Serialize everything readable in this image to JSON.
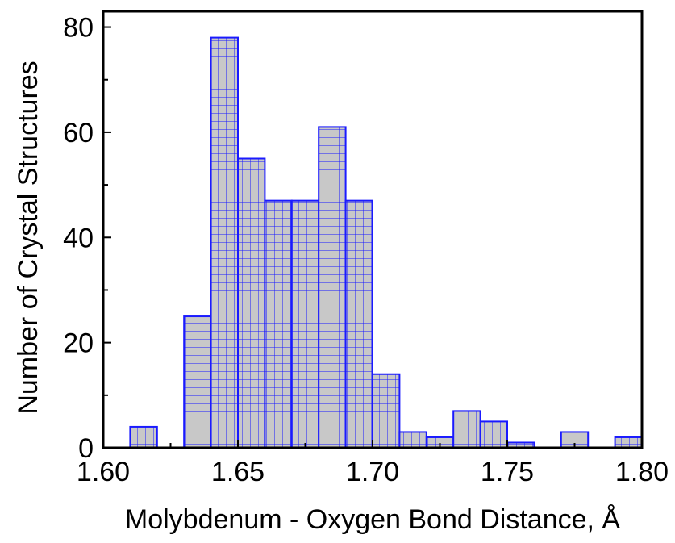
{
  "chart_data": {
    "type": "bar",
    "title": "",
    "xlabel": "Molybdenum - Oxygen Bond Distance, Å",
    "ylabel": "Number of Crystal Structures",
    "xlim": [
      1.6,
      1.8
    ],
    "ylim": [
      0,
      83
    ],
    "x_ticks": [
      "1.60",
      "1.65",
      "1.70",
      "1.75",
      "1.80"
    ],
    "y_ticks": [
      "0",
      "20",
      "40",
      "60",
      "80"
    ],
    "bin_width": 0.01,
    "bins": [
      {
        "x_start": 1.61,
        "value": 4
      },
      {
        "x_start": 1.63,
        "value": 25
      },
      {
        "x_start": 1.64,
        "value": 78
      },
      {
        "x_start": 1.65,
        "value": 55
      },
      {
        "x_start": 1.66,
        "value": 47
      },
      {
        "x_start": 1.67,
        "value": 47
      },
      {
        "x_start": 1.68,
        "value": 61
      },
      {
        "x_start": 1.69,
        "value": 47
      },
      {
        "x_start": 1.7,
        "value": 14
      },
      {
        "x_start": 1.71,
        "value": 3
      },
      {
        "x_start": 1.72,
        "value": 2
      },
      {
        "x_start": 1.73,
        "value": 7
      },
      {
        "x_start": 1.74,
        "value": 5
      },
      {
        "x_start": 1.75,
        "value": 1
      },
      {
        "x_start": 1.77,
        "value": 3
      },
      {
        "x_start": 1.79,
        "value": 2
      }
    ],
    "grid": false,
    "legend": "none",
    "colors": {
      "bar_fill": "#c8c8c8",
      "bar_edge": "#1a1aff",
      "hatch": "#1a1aff",
      "axis": "#000000"
    }
  }
}
